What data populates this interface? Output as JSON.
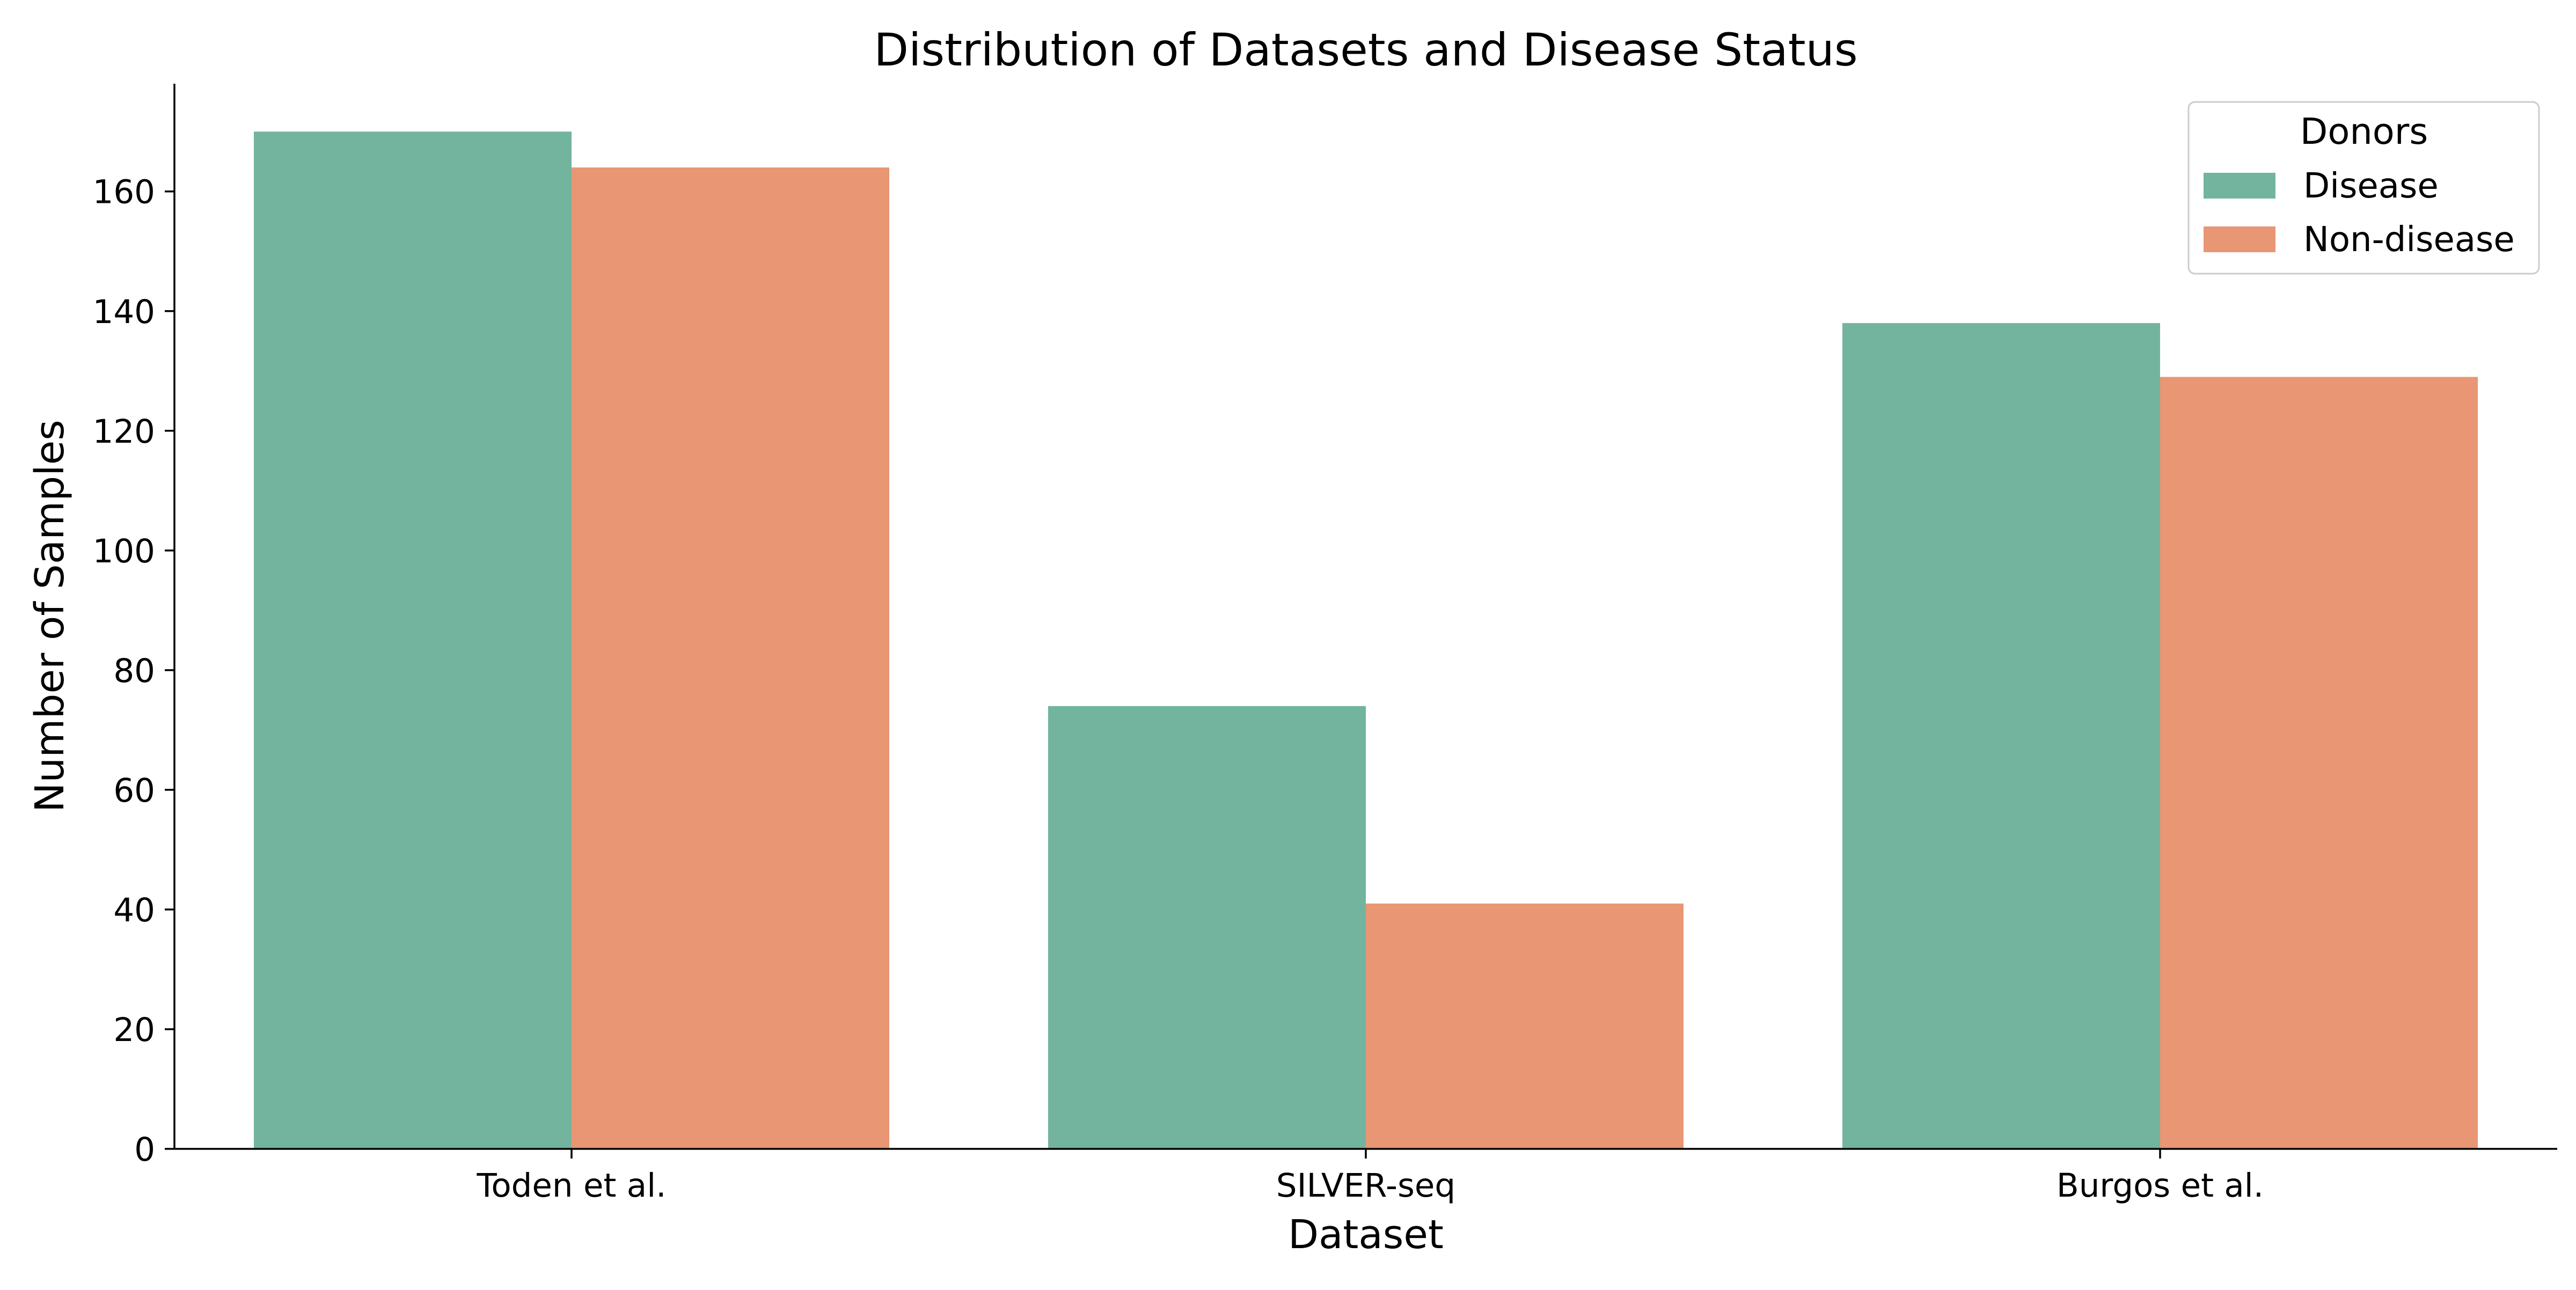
{
  "chart_data": {
    "type": "bar",
    "title": "Distribution of Datasets and Disease Status",
    "xlabel": "Dataset",
    "ylabel": "Number of Samples",
    "categories": [
      "Toden et al.",
      "SILVER-seq",
      "Burgos et al."
    ],
    "series": [
      {
        "name": "Disease",
        "values": [
          170,
          74,
          138
        ],
        "color": "#73b49f"
      },
      {
        "name": "Non-disease",
        "values": [
          164,
          41,
          129
        ],
        "color": "#e89674"
      }
    ],
    "ylim": [
      0,
      178
    ],
    "yticks": [
      0,
      20,
      40,
      60,
      80,
      100,
      120,
      140,
      160
    ],
    "grid": false,
    "legend": {
      "title": "Donors",
      "placement": "top-right"
    }
  }
}
